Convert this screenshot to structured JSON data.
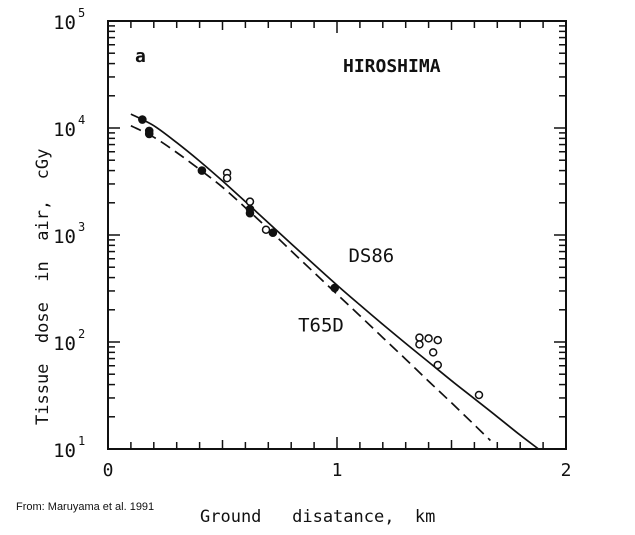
{
  "chart_data": {
    "type": "line",
    "panel_label": "a",
    "title": "HIROSHIMA",
    "xlabel": "Ground   disatance,  km",
    "ylabel": "Tissue  dose  in  air,  cGy",
    "xlim": [
      0,
      2
    ],
    "ylim": [
      10,
      100000
    ],
    "yscale": "log",
    "x_ticks": [
      {
        "value": 0,
        "label": "0"
      },
      {
        "value": 1,
        "label": "1"
      },
      {
        "value": 2,
        "label": "2"
      }
    ],
    "y_ticks": [
      {
        "value": 10,
        "base": "10",
        "exp": "1"
      },
      {
        "value": 100,
        "base": "10",
        "exp": "2"
      },
      {
        "value": 1000,
        "base": "10",
        "exp": "3"
      },
      {
        "value": 10000,
        "base": "10",
        "exp": "4"
      },
      {
        "value": 100000,
        "base": "10",
        "exp": "5"
      }
    ],
    "series": [
      {
        "name": "DS86",
        "style": "solid",
        "points": [
          [
            0.1,
            13500
          ],
          [
            0.2,
            10500
          ],
          [
            0.3,
            7300
          ],
          [
            0.4,
            4900
          ],
          [
            0.5,
            3200
          ],
          [
            0.6,
            2050
          ],
          [
            0.7,
            1300
          ],
          [
            0.8,
            830
          ],
          [
            0.9,
            530
          ],
          [
            1.0,
            340
          ],
          [
            1.1,
            222
          ],
          [
            1.2,
            146
          ],
          [
            1.3,
            97
          ],
          [
            1.4,
            65
          ],
          [
            1.5,
            43.5
          ],
          [
            1.6,
            29.5
          ],
          [
            1.7,
            20
          ],
          [
            1.8,
            13.5
          ],
          [
            1.88,
            10
          ]
        ]
      },
      {
        "name": "T65D",
        "style": "dashed",
        "points": [
          [
            0.1,
            10500
          ],
          [
            0.2,
            8200
          ],
          [
            0.3,
            5900
          ],
          [
            0.4,
            4100
          ],
          [
            0.5,
            2800
          ],
          [
            0.6,
            1800
          ],
          [
            0.7,
            1140
          ],
          [
            0.8,
            710
          ],
          [
            0.9,
            445
          ],
          [
            1.0,
            280
          ],
          [
            1.1,
            176
          ],
          [
            1.2,
            110
          ],
          [
            1.3,
            69
          ],
          [
            1.4,
            43
          ],
          [
            1.5,
            27
          ],
          [
            1.6,
            16.8
          ],
          [
            1.67,
            12
          ]
        ]
      }
    ],
    "filled_points": [
      [
        0.15,
        12000
      ],
      [
        0.18,
        9400
      ],
      [
        0.18,
        8800
      ],
      [
        0.41,
        4000
      ],
      [
        0.62,
        1600
      ],
      [
        0.62,
        1750
      ],
      [
        0.72,
        1050
      ],
      [
        0.99,
        320
      ]
    ],
    "open_points": [
      [
        0.52,
        3800
      ],
      [
        0.52,
        3400
      ],
      [
        0.62,
        2050
      ],
      [
        0.69,
        1120
      ],
      [
        1.36,
        110
      ],
      [
        1.36,
        95
      ],
      [
        1.4,
        108
      ],
      [
        1.44,
        104
      ],
      [
        1.42,
        80
      ],
      [
        1.44,
        61
      ],
      [
        1.62,
        32
      ]
    ],
    "curve_labels": [
      {
        "text": "DS86",
        "x": 1.05,
        "y": 560
      },
      {
        "text": "T65D",
        "x": 0.83,
        "y": 125
      }
    ]
  },
  "source_note": "From: Maruyama et al. 1991"
}
